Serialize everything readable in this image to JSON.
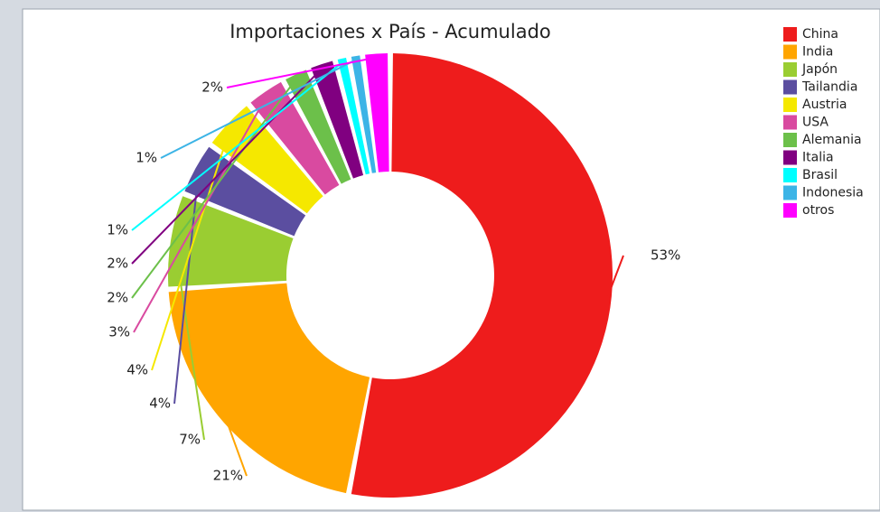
{
  "chart_data": {
    "type": "pie",
    "title": "Importaciones x País - Acumulado",
    "categories": [
      "China",
      "India",
      "Japón",
      "Tailandia",
      "Austria",
      "USA",
      "Alemania",
      "Italia",
      "Brasil",
      "Indonesia",
      "otros"
    ],
    "values": [
      53,
      21,
      7,
      4,
      4,
      3,
      2,
      2,
      1,
      1,
      2
    ],
    "value_labels": [
      "53%",
      "21%",
      "7%",
      "4%",
      "4%",
      "3%",
      "2%",
      "2%",
      "1%",
      "1%",
      "2%"
    ],
    "colors": [
      "#ee1c1c",
      "#ffa500",
      "#9acd32",
      "#5b4ea0",
      "#f5e800",
      "#d94aa0",
      "#6cc04a",
      "#800080",
      "#00ffff",
      "#3cb4e6",
      "#ff00ff"
    ],
    "legend": "right"
  }
}
